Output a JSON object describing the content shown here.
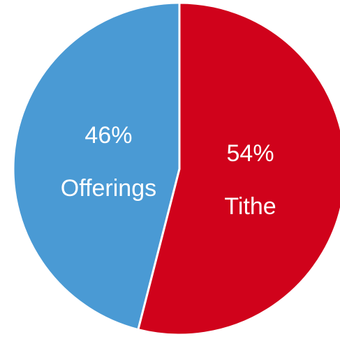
{
  "chart_data": {
    "type": "pie",
    "slices": [
      {
        "label": "Tithe",
        "value": 54,
        "percent_label": "54%",
        "color": "#d0021b"
      },
      {
        "label": "Offerings",
        "value": 46,
        "percent_label": "46%",
        "color": "#4a9ad4"
      }
    ],
    "start_angle_deg": 0,
    "direction": "clockwise",
    "legend": "none"
  }
}
